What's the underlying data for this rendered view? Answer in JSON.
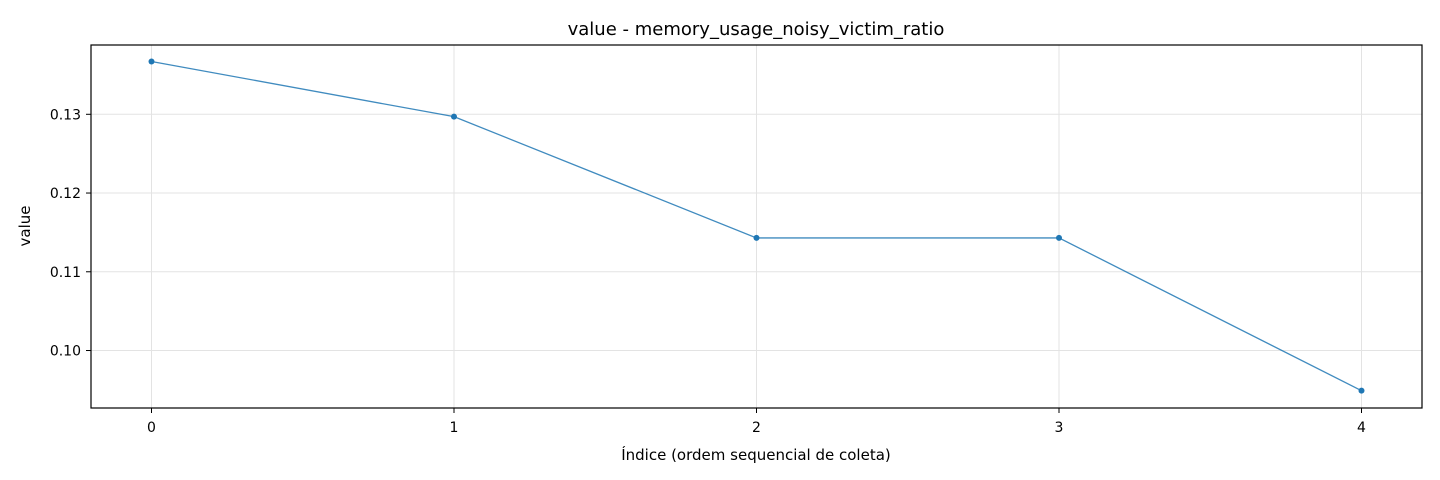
{
  "chart_data": {
    "type": "line",
    "title": "value - memory_usage_noisy_victim_ratio",
    "xlabel": "Índice (ordem sequencial de coleta)",
    "ylabel": "value",
    "x": [
      0,
      1,
      2,
      3,
      4
    ],
    "xticks": [
      "0",
      "1",
      "2",
      "3",
      "4"
    ],
    "yticks": [
      "0.10",
      "0.11",
      "0.12",
      "0.13"
    ],
    "xlim": [
      -0.2,
      4.2
    ],
    "ylim": [
      0.0927,
      0.1388
    ],
    "grid": true,
    "series": [
      {
        "values": [
          0.1367,
          0.1297,
          0.1143,
          0.1143,
          0.0949
        ],
        "color": "#1f77b4"
      }
    ]
  }
}
